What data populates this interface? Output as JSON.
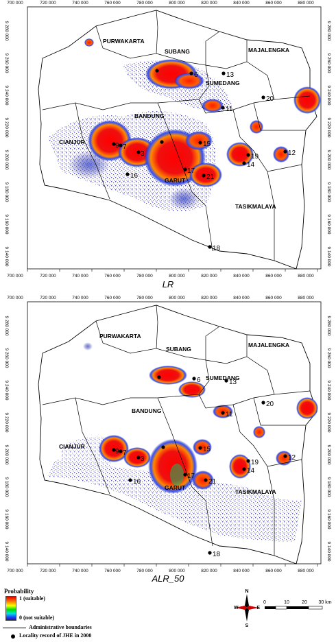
{
  "panels": [
    {
      "id": "LR",
      "title": "LR",
      "x_ticks": [
        "700 000",
        "720 000",
        "740 000",
        "760 000",
        "780 000",
        "800 000",
        "820 000",
        "840 000",
        "860 000",
        "880 000"
      ],
      "y_ticks": [
        "9 280 000",
        "9 260 000",
        "9 240 000",
        "9 220 000",
        "9 200 000",
        "9 180 000",
        "9 160 000",
        "9 140 000"
      ],
      "regions": [
        "PURWAKARTA",
        "SUBANG",
        "MAJALENGKA",
        "SUMEDANG",
        "BANDUNG",
        "CIANJUR",
        "GARUT",
        "TASIKMALAYA"
      ],
      "localities": [
        "6",
        "13",
        "20",
        "11",
        "7",
        "9",
        "3",
        "15",
        "17",
        "21",
        "12",
        "19",
        "14",
        "16",
        "18"
      ]
    },
    {
      "id": "ALR_50",
      "title": "ALR_50",
      "x_ticks": [
        "700 000",
        "720 000",
        "740 000",
        "760 000",
        "780 000",
        "800 000",
        "820 000",
        "840 000",
        "860 000",
        "880 000"
      ],
      "y_ticks": [
        "9 280 000",
        "9 260 000",
        "9 240 000",
        "9 220 000",
        "9 200 000",
        "9 180 000",
        "9 160 000",
        "9 140 000"
      ],
      "regions": [
        "PURWAKARTA",
        "SUBANG",
        "MAJALENGKA",
        "SUMEDANG",
        "BANDUNG",
        "CIANJUR",
        "GARUT",
        "TASIKMALAYA"
      ],
      "localities": [
        "6",
        "13",
        "20",
        "11",
        "7",
        "9",
        "3",
        "15",
        "17",
        "21",
        "12",
        "19",
        "14",
        "16",
        "18"
      ]
    }
  ],
  "legend": {
    "title": "Probability",
    "top_label": "1 (suitable)",
    "bottom_label": "0 (not suitable)",
    "boundary_label": "Administrative boundaries",
    "locality_label": "Locality record of JHE in 2000"
  },
  "compass": {
    "n": "N",
    "s": "S",
    "e": "E",
    "w": "W"
  },
  "scale": {
    "labels": [
      "0",
      "10",
      "20",
      "30 km"
    ]
  },
  "colors": {
    "high": "#e00000",
    "mid": "#00c000",
    "low": "#1a1a8a",
    "boundary": "#000000"
  }
}
